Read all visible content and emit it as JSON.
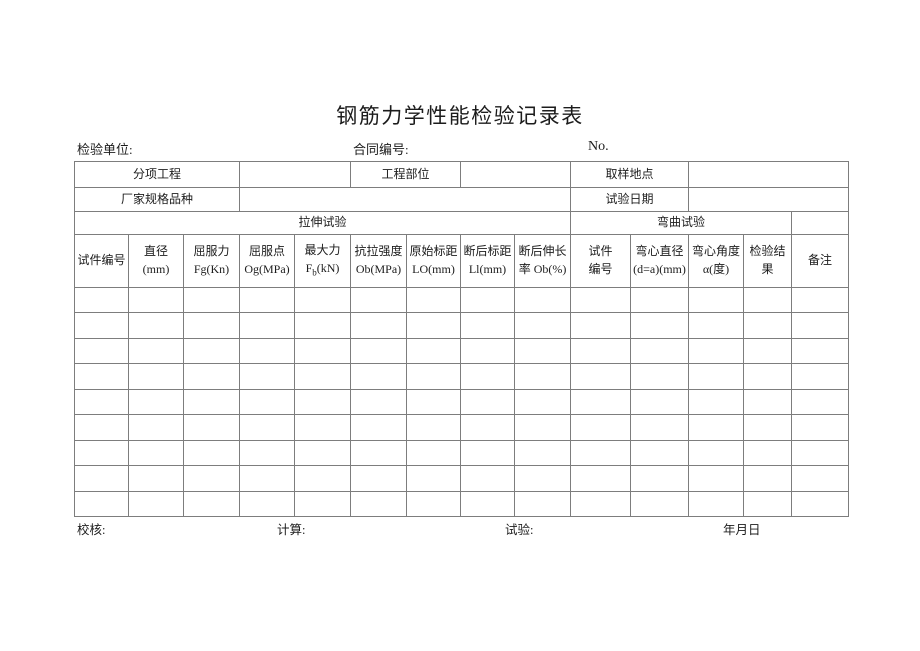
{
  "page": {
    "title": "钢筋力学性能检验记录表"
  },
  "meta": {
    "inspection_unit_label": "检验单位:",
    "contract_no_label": "合同编号:",
    "no_label": "No."
  },
  "table": {
    "info": {
      "sub_project_label": "分项工程",
      "sub_project_value": "",
      "project_part_label": "工程部位",
      "project_part_value": "",
      "sampling_location_label": "取样地点",
      "sampling_location_value": "",
      "manufacturer_spec_label": "厂家规格品种",
      "manufacturer_spec_value": "",
      "test_date_label": "试验日期",
      "test_date_value": ""
    },
    "sections": {
      "tensile_test": "拉伸试验",
      "bending_test": "弯曲试验"
    },
    "columns": [
      {
        "line1": "试件编号",
        "line2": ""
      },
      {
        "line1": "直径",
        "line2": "(mm)"
      },
      {
        "line1": "屈服力",
        "line2": "Fg(Kn)"
      },
      {
        "line1": "屈服点",
        "line2": "Og(MPa)"
      },
      {
        "line1": "最大力",
        "sym": "F",
        "sub": "b",
        "post": "(kN)"
      },
      {
        "line1": "抗拉强度",
        "line2": "Ob(MPa)"
      },
      {
        "line1": "原始标距",
        "line2": "LO(mm)"
      },
      {
        "line1": "断后标距",
        "line2": "Ll(mm)"
      },
      {
        "line1": "断后伸长",
        "line2": "率 Ob(%)"
      },
      {
        "line1": "试件",
        "line2": "编号"
      },
      {
        "line1": "弯心直径",
        "line2": "(d=a)(mm)"
      },
      {
        "line1": "弯心角度",
        "line2": "α(度)"
      },
      {
        "line1": "检验结",
        "line2": "果"
      },
      {
        "line1": "备注",
        "line2": ""
      }
    ],
    "empty_row_count": 9,
    "column_count": 14,
    "cell_values": []
  },
  "footer": {
    "check_label": "校核:",
    "calculate_label": "计算:",
    "test_label": "试验:",
    "date_label": "年月日"
  },
  "colors": {
    "text": "#1c1c1c",
    "border": "#7d7d7d",
    "outer_border": "#3f3f3f",
    "background": "#ffffff"
  }
}
